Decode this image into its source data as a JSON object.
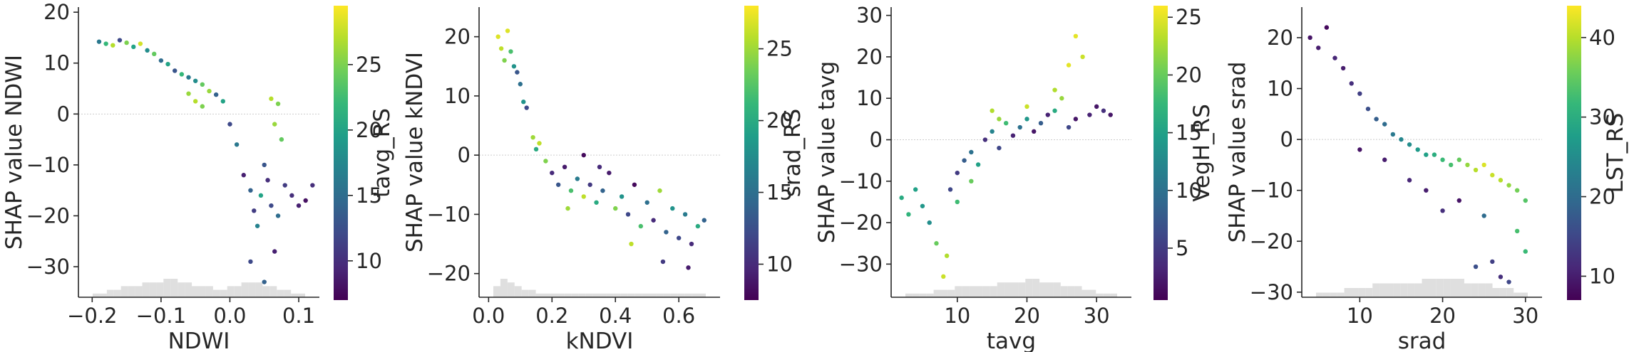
{
  "chart_data": [
    {
      "type": "scatter",
      "xlabel": "NDWI",
      "ylabel": "SHAP value NDWI",
      "colorbar_label": "tavg_RS",
      "xlim": [
        -0.22,
        0.13
      ],
      "ylim": [
        -36,
        21
      ],
      "xticks": [
        -0.2,
        -0.1,
        0.0,
        0.1
      ],
      "xtick_labels": [
        "−0.2",
        "−0.1",
        "0.0",
        "0.1"
      ],
      "yticks": [
        20,
        10,
        0,
        -10,
        -20,
        -30
      ],
      "ytick_labels": [
        "20",
        "10",
        "0",
        "−10",
        "−20",
        "−30"
      ],
      "cbar_range": [
        7,
        29.5
      ],
      "cbar_ticks": [
        25,
        20,
        15,
        10
      ],
      "cbar_tick_labels": [
        "25",
        "20",
        "15",
        "10"
      ],
      "colormap": "viridis",
      "zero_line": true,
      "grid": false,
      "histogram": [
        1,
        1,
        2,
        2,
        3,
        3,
        3,
        4,
        4,
        4,
        5,
        5,
        4,
        4,
        3,
        3,
        3,
        2,
        2,
        3,
        3,
        4,
        4,
        4,
        3,
        3,
        2,
        2,
        1,
        1
      ],
      "points": [
        [
          -0.19,
          14.2,
          16
        ],
        [
          -0.18,
          13.8,
          22
        ],
        [
          -0.17,
          13.5,
          27
        ],
        [
          -0.16,
          14.5,
          12
        ],
        [
          -0.15,
          14.0,
          25
        ],
        [
          -0.14,
          13.2,
          20
        ],
        [
          -0.13,
          13.8,
          28
        ],
        [
          -0.12,
          12.5,
          18
        ],
        [
          -0.11,
          11.8,
          24
        ],
        [
          -0.1,
          10.5,
          15
        ],
        [
          -0.09,
          9.8,
          20
        ],
        [
          -0.08,
          8.5,
          13
        ],
        [
          -0.07,
          7.8,
          22
        ],
        [
          -0.06,
          7.2,
          16
        ],
        [
          -0.05,
          6.5,
          18
        ],
        [
          -0.04,
          5.8,
          24
        ],
        [
          -0.03,
          4.5,
          26
        ],
        [
          -0.02,
          3.8,
          14
        ],
        [
          -0.01,
          2.5,
          20
        ],
        [
          0.0,
          -2.0,
          12
        ],
        [
          0.01,
          -6.0,
          16
        ],
        [
          0.02,
          -12.0,
          9
        ],
        [
          0.03,
          -15.0,
          14
        ],
        [
          0.035,
          -19.0,
          11
        ],
        [
          0.04,
          -22.0,
          17
        ],
        [
          0.045,
          -16.0,
          20
        ],
        [
          0.05,
          -10.0,
          13
        ],
        [
          0.055,
          -13.0,
          10
        ],
        [
          0.06,
          -18.0,
          12
        ],
        [
          0.065,
          -27.0,
          9
        ],
        [
          0.07,
          -20.0,
          15
        ],
        [
          0.06,
          3.0,
          27
        ],
        [
          0.065,
          -2.0,
          26
        ],
        [
          0.07,
          2.0,
          25
        ],
        [
          0.075,
          -5.0,
          24
        ],
        [
          0.08,
          -14.0,
          11
        ],
        [
          0.09,
          -16.0,
          10
        ],
        [
          0.1,
          -18.0,
          9
        ],
        [
          0.11,
          -17.0,
          8
        ],
        [
          0.12,
          -14.0,
          10
        ],
        [
          0.03,
          -29.0,
          12
        ],
        [
          0.05,
          -33.0,
          14
        ],
        [
          -0.06,
          4.0,
          26
        ],
        [
          -0.05,
          2.5,
          27
        ],
        [
          -0.04,
          1.5,
          25
        ]
      ]
    },
    {
      "type": "scatter",
      "xlabel": "kNDVI",
      "ylabel": "SHAP value kNDVI",
      "colorbar_label": "srad_RS",
      "xlim": [
        -0.03,
        0.73
      ],
      "ylim": [
        -24,
        25
      ],
      "xticks": [
        0.0,
        0.2,
        0.4,
        0.6
      ],
      "xtick_labels": [
        "0.0",
        "0.2",
        "0.4",
        "0.6"
      ],
      "yticks": [
        20,
        10,
        0,
        -10,
        -20
      ],
      "ytick_labels": [
        "20",
        "10",
        "0",
        "−10",
        "−20"
      ],
      "cbar_range": [
        7.5,
        28
      ],
      "cbar_ticks": [
        25,
        20,
        15,
        10
      ],
      "cbar_tick_labels": [
        "25",
        "20",
        "15",
        "10"
      ],
      "colormap": "viridis",
      "zero_line": true,
      "grid": false,
      "histogram": [
        3,
        5,
        4,
        3,
        2,
        2,
        1,
        1,
        1,
        1,
        1,
        1,
        1,
        1,
        1,
        1,
        1,
        1,
        1,
        1,
        1,
        1,
        1,
        1,
        1,
        1,
        1,
        1,
        1,
        1
      ],
      "points": [
        [
          0.03,
          20.0,
          27
        ],
        [
          0.04,
          18.0,
          26
        ],
        [
          0.05,
          16.0,
          24
        ],
        [
          0.06,
          21.0,
          27
        ],
        [
          0.07,
          17.5,
          22
        ],
        [
          0.08,
          15.0,
          18
        ],
        [
          0.09,
          14.0,
          13
        ],
        [
          0.1,
          12.0,
          15
        ],
        [
          0.11,
          9.0,
          18
        ],
        [
          0.12,
          8.0,
          12
        ],
        [
          0.14,
          3.0,
          25
        ],
        [
          0.15,
          1.0,
          20
        ],
        [
          0.16,
          2.0,
          26
        ],
        [
          0.18,
          -1.0,
          24
        ],
        [
          0.2,
          -3.0,
          10
        ],
        [
          0.22,
          -5.0,
          13
        ],
        [
          0.24,
          -2.0,
          9
        ],
        [
          0.26,
          -6.0,
          22
        ],
        [
          0.28,
          -4.0,
          16
        ],
        [
          0.3,
          -7.0,
          26
        ],
        [
          0.32,
          -5.0,
          11
        ],
        [
          0.34,
          -8.0,
          20
        ],
        [
          0.36,
          -6.0,
          14
        ],
        [
          0.38,
          -3.0,
          9
        ],
        [
          0.4,
          -9.0,
          24
        ],
        [
          0.42,
          -7.0,
          18
        ],
        [
          0.44,
          -10.0,
          12
        ],
        [
          0.46,
          -5.0,
          8
        ],
        [
          0.48,
          -12.0,
          22
        ],
        [
          0.5,
          -8.0,
          15
        ],
        [
          0.52,
          -11.0,
          10
        ],
        [
          0.54,
          -6.0,
          25
        ],
        [
          0.56,
          -13.0,
          14
        ],
        [
          0.58,
          -9.0,
          18
        ],
        [
          0.6,
          -14.0,
          12
        ],
        [
          0.62,
          -10.0,
          16
        ],
        [
          0.64,
          -15.0,
          10
        ],
        [
          0.66,
          -12.0,
          20
        ],
        [
          0.68,
          -11.0,
          14
        ],
        [
          0.45,
          -15.0,
          26
        ],
        [
          0.55,
          -18.0,
          11
        ],
        [
          0.63,
          -19.0,
          9
        ],
        [
          0.3,
          0.0,
          8
        ],
        [
          0.35,
          -2.0,
          10
        ],
        [
          0.25,
          -9.0,
          25
        ]
      ]
    },
    {
      "type": "scatter",
      "xlabel": "tavg",
      "ylabel": "SHAP value tavg",
      "colorbar_label": "VegH_RS",
      "xlim": [
        0.5,
        35
      ],
      "ylim": [
        -38,
        32
      ],
      "xticks": [
        10,
        20,
        30
      ],
      "xtick_labels": [
        "10",
        "20",
        "30"
      ],
      "yticks": [
        30,
        20,
        10,
        0,
        -10,
        -20,
        -30
      ],
      "ytick_labels": [
        "30",
        "20",
        "10",
        "0",
        "−10",
        "−20",
        "−30"
      ],
      "cbar_range": [
        0.5,
        26
      ],
      "cbar_ticks": [
        25,
        20,
        15,
        10,
        5
      ],
      "cbar_tick_labels": [
        "25",
        "20",
        "15",
        "10",
        "5"
      ],
      "colormap": "viridis",
      "zero_line": true,
      "grid": false,
      "histogram": [
        1,
        1,
        1,
        1,
        2,
        2,
        2,
        3,
        3,
        3,
        3,
        3,
        3,
        4,
        4,
        4,
        4,
        5,
        5,
        4,
        4,
        4,
        3,
        3,
        3,
        2,
        2,
        1,
        1,
        1
      ],
      "points": [
        [
          2,
          -14.0,
          16
        ],
        [
          3,
          -18.0,
          17
        ],
        [
          4,
          -12.0,
          15
        ],
        [
          5,
          -16.0,
          14
        ],
        [
          6,
          -20.0,
          13
        ],
        [
          7,
          -25.0,
          20
        ],
        [
          8,
          -33.0,
          24
        ],
        [
          8.5,
          -28.0,
          23
        ],
        [
          9,
          -12.0,
          6
        ],
        [
          10,
          -8.0,
          5
        ],
        [
          11,
          -5.0,
          8
        ],
        [
          12,
          -3.0,
          10
        ],
        [
          13,
          -6.0,
          15
        ],
        [
          14,
          0.0,
          4
        ],
        [
          15,
          2.0,
          12
        ],
        [
          16,
          -2.0,
          6
        ],
        [
          17,
          4.0,
          18
        ],
        [
          18,
          1.0,
          3
        ],
        [
          19,
          3.0,
          10
        ],
        [
          20,
          5.0,
          14
        ],
        [
          21,
          2.0,
          2
        ],
        [
          22,
          4.0,
          8
        ],
        [
          23,
          6.0,
          3
        ],
        [
          24,
          7.0,
          16
        ],
        [
          25,
          10.0,
          22
        ],
        [
          26,
          18.0,
          25
        ],
        [
          27,
          25.0,
          25
        ],
        [
          28,
          20.0,
          24
        ],
        [
          27,
          5.0,
          2
        ],
        [
          29,
          6.0,
          3
        ],
        [
          30,
          8.0,
          2
        ],
        [
          31,
          7.0,
          4
        ],
        [
          32,
          6.0,
          2
        ],
        [
          15,
          7.0,
          23
        ],
        [
          16,
          5.0,
          22
        ],
        [
          20,
          8.0,
          24
        ],
        [
          12,
          -10.0,
          20
        ],
        [
          10,
          -15.0,
          18
        ],
        [
          26,
          3.0,
          6
        ],
        [
          24,
          12.0,
          23
        ]
      ]
    },
    {
      "type": "scatter",
      "xlabel": "srad",
      "ylabel": "SHAP value srad",
      "colorbar_label": "LST_RS",
      "xlim": [
        3,
        32
      ],
      "ylim": [
        -31,
        26
      ],
      "xticks": [
        10,
        20,
        30
      ],
      "xtick_labels": [
        "10",
        "20",
        "30"
      ],
      "yticks": [
        20,
        10,
        0,
        -10,
        -20,
        -30
      ],
      "ytick_labels": [
        "20",
        "10",
        "0",
        "−10",
        "−20",
        "−30"
      ],
      "cbar_range": [
        7,
        44
      ],
      "cbar_ticks": [
        40,
        30,
        20,
        10
      ],
      "cbar_tick_labels": [
        "40",
        "30",
        "20",
        "10"
      ],
      "colormap": "viridis",
      "zero_line": true,
      "grid": false,
      "histogram": [
        1,
        1,
        1,
        1,
        2,
        2,
        2,
        2,
        3,
        3,
        3,
        3,
        3,
        3,
        3,
        4,
        4,
        4,
        4,
        4,
        4,
        3,
        3,
        3,
        3,
        2,
        2,
        2,
        1,
        1
      ],
      "points": [
        [
          4,
          20.0,
          9
        ],
        [
          5,
          18.0,
          10
        ],
        [
          6,
          22.0,
          8
        ],
        [
          7,
          16.0,
          11
        ],
        [
          8,
          14.0,
          10
        ],
        [
          9,
          11.0,
          12
        ],
        [
          10,
          9.0,
          14
        ],
        [
          11,
          6.0,
          16
        ],
        [
          12,
          4.0,
          18
        ],
        [
          13,
          3.0,
          20
        ],
        [
          14,
          1.0,
          22
        ],
        [
          15,
          0.0,
          24
        ],
        [
          16,
          -1.0,
          25
        ],
        [
          17,
          -2.0,
          27
        ],
        [
          18,
          -3.0,
          28
        ],
        [
          19,
          -3.0,
          30
        ],
        [
          20,
          -4.0,
          32
        ],
        [
          21,
          -5.0,
          33
        ],
        [
          22,
          -4.0,
          35
        ],
        [
          23,
          -5.0,
          38
        ],
        [
          24,
          -6.0,
          40
        ],
        [
          25,
          -5.0,
          42
        ],
        [
          26,
          -7.0,
          41
        ],
        [
          27,
          -8.0,
          40
        ],
        [
          28,
          -9.0,
          38
        ],
        [
          29,
          -10.0,
          36
        ],
        [
          30,
          -12.0,
          34
        ],
        [
          29,
          -18.0,
          33
        ],
        [
          30,
          -22.0,
          32
        ],
        [
          26,
          -24.0,
          14
        ],
        [
          27,
          -27.0,
          12
        ],
        [
          24,
          -25.0,
          16
        ],
        [
          20,
          -14.0,
          12
        ],
        [
          18,
          -10.0,
          10
        ],
        [
          16,
          -8.0,
          11
        ],
        [
          22,
          -12.0,
          9
        ],
        [
          13,
          -4.0,
          10
        ],
        [
          10,
          -2.0,
          9
        ],
        [
          25,
          -15.0,
          20
        ],
        [
          28,
          -28.0,
          15
        ]
      ]
    }
  ]
}
